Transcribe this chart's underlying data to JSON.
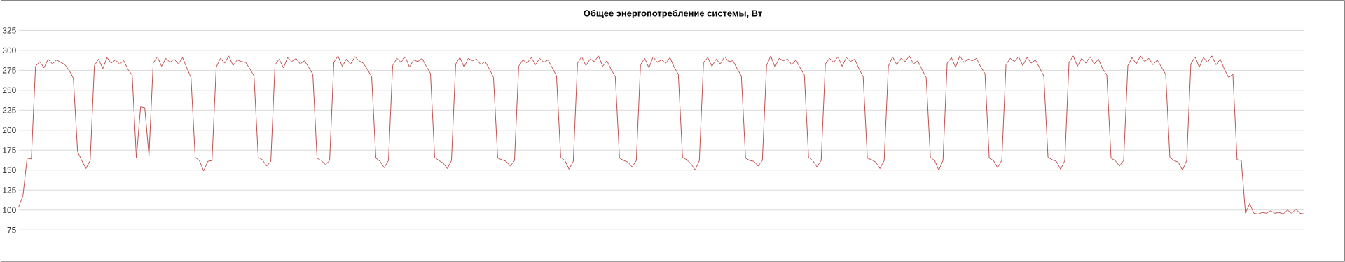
{
  "chart_data": {
    "type": "line",
    "title": "Общее энергопотребление системы, Вт",
    "categories": [
      null,
      null,
      null,
      null,
      null,
      null,
      null,
      null,
      null,
      null,
      null,
      null,
      null,
      null,
      null,
      null,
      null,
      null,
      null,
      null,
      null,
      null,
      null,
      null,
      null,
      null,
      null,
      null,
      null,
      null,
      null,
      null,
      null,
      null,
      null,
      null,
      null,
      null,
      null,
      null,
      null,
      null,
      null,
      null,
      null,
      null,
      null,
      null,
      null,
      null,
      null,
      null,
      null,
      null,
      null,
      null,
      null,
      null,
      null,
      null,
      null,
      null,
      null,
      null,
      null,
      null,
      null,
      null,
      null,
      null,
      null,
      null,
      null,
      null,
      null,
      null,
      null,
      null,
      null,
      null,
      null,
      null,
      null,
      null,
      null,
      null,
      null,
      null,
      null,
      null,
      null,
      null,
      null,
      null,
      null,
      null,
      null,
      null,
      null,
      null,
      null,
      null,
      null,
      null,
      null,
      null,
      null,
      null,
      null,
      null,
      null,
      null,
      null,
      null,
      null,
      null,
      null,
      null,
      null,
      null,
      null,
      null,
      null,
      null,
      null,
      null,
      null,
      null,
      null,
      null,
      null,
      null,
      null,
      null,
      null,
      null,
      null,
      null,
      null,
      null,
      null,
      null,
      null,
      null,
      null,
      null,
      null,
      null,
      null,
      null,
      null,
      null,
      null,
      null,
      null,
      null,
      null,
      null,
      null,
      null,
      null,
      null,
      null,
      null,
      null,
      null,
      null,
      null,
      null,
      null,
      null,
      null,
      null,
      null,
      null,
      null,
      null,
      null,
      null,
      null,
      null,
      null,
      null,
      null,
      null,
      null,
      null,
      null,
      null,
      null,
      null,
      null,
      null,
      null,
      null,
      null,
      null,
      null,
      null,
      null,
      null,
      null,
      null,
      null,
      null,
      null,
      null,
      null,
      null,
      null,
      null,
      null,
      null,
      null,
      null,
      null,
      null,
      null,
      null,
      null,
      null,
      null,
      null,
      null,
      null,
      null,
      null,
      null,
      null,
      null,
      null,
      null,
      null,
      null,
      null,
      null,
      null,
      null,
      null,
      null,
      null,
      null,
      null,
      null,
      null,
      null,
      null,
      null,
      null,
      null,
      null,
      null,
      null,
      null,
      null,
      null,
      null,
      null,
      null,
      null,
      null,
      null,
      null,
      null,
      null,
      null,
      null,
      null,
      null,
      null,
      null,
      null,
      null,
      null,
      null,
      null,
      null,
      null,
      null,
      null,
      null,
      null,
      null,
      null,
      null,
      null,
      null,
      null,
      null,
      null,
      null,
      null,
      null,
      null,
      null,
      null,
      null,
      null,
      null,
      null,
      null,
      null,
      null,
      null,
      null,
      null,
      null
    ],
    "series": [
      {
        "color": "#c0504d",
        "values": [
          104,
          118,
          165,
          164,
          280,
          286,
          278,
          289,
          283,
          288,
          285,
          282,
          275,
          265,
          173,
          162,
          152,
          162,
          281,
          289,
          277,
          291,
          284,
          288,
          283,
          287,
          276,
          269,
          165,
          229,
          228,
          168,
          284,
          292,
          280,
          290,
          285,
          289,
          283,
          291,
          278,
          266,
          166,
          162,
          149,
          161,
          162,
          279,
          290,
          284,
          293,
          281,
          288,
          286,
          285,
          277,
          268,
          166,
          163,
          155,
          161,
          282,
          289,
          278,
          291,
          286,
          290,
          283,
          287,
          279,
          270,
          165,
          162,
          157,
          162,
          285,
          293,
          280,
          289,
          283,
          292,
          287,
          284,
          276,
          267,
          165,
          161,
          153,
          162,
          281,
          290,
          285,
          292,
          279,
          288,
          286,
          290,
          280,
          271,
          166,
          162,
          159,
          152,
          162,
          283,
          291,
          279,
          290,
          287,
          289,
          282,
          286,
          277,
          266,
          165,
          163,
          161,
          155,
          162,
          280,
          288,
          284,
          291,
          282,
          290,
          285,
          288,
          278,
          268,
          166,
          162,
          151,
          161,
          284,
          292,
          281,
          289,
          286,
          293,
          280,
          287,
          276,
          267,
          165,
          162,
          160,
          154,
          162,
          282,
          290,
          278,
          292,
          285,
          288,
          284,
          291,
          279,
          270,
          166,
          163,
          158,
          150,
          162,
          285,
          291,
          280,
          289,
          283,
          292,
          286,
          287,
          277,
          268,
          165,
          162,
          161,
          155,
          162,
          281,
          293,
          279,
          290,
          287,
          289,
          282,
          288,
          278,
          269,
          166,
          162,
          154,
          162,
          283,
          290,
          285,
          292,
          280,
          291,
          286,
          289,
          277,
          267,
          165,
          163,
          160,
          152,
          162,
          280,
          292,
          282,
          290,
          286,
          293,
          283,
          287,
          276,
          266,
          166,
          162,
          150,
          162,
          284,
          291,
          279,
          293,
          285,
          289,
          287,
          290,
          279,
          271,
          165,
          162,
          153,
          162,
          282,
          290,
          286,
          292,
          281,
          291,
          284,
          288,
          278,
          268,
          166,
          163,
          161,
          151,
          162,
          285,
          293,
          280,
          290,
          284,
          292,
          283,
          289,
          277,
          269,
          165,
          162,
          155,
          162,
          281,
          291,
          283,
          293,
          286,
          290,
          282,
          288,
          279,
          270,
          166,
          162,
          160,
          150,
          162,
          283,
          292,
          279,
          291,
          285,
          293,
          282,
          289,
          276,
          266,
          270,
          163,
          162,
          96,
          108,
          96,
          95,
          97,
          96,
          99,
          96,
          97,
          95,
          100,
          96,
          101,
          96,
          95
        ]
      }
    ],
    "ylim": [
      75,
      325
    ],
    "yticks": [
      75,
      100,
      125,
      150,
      175,
      200,
      225,
      250,
      275,
      300,
      325
    ],
    "grid": "y",
    "tick_labels": "y"
  }
}
